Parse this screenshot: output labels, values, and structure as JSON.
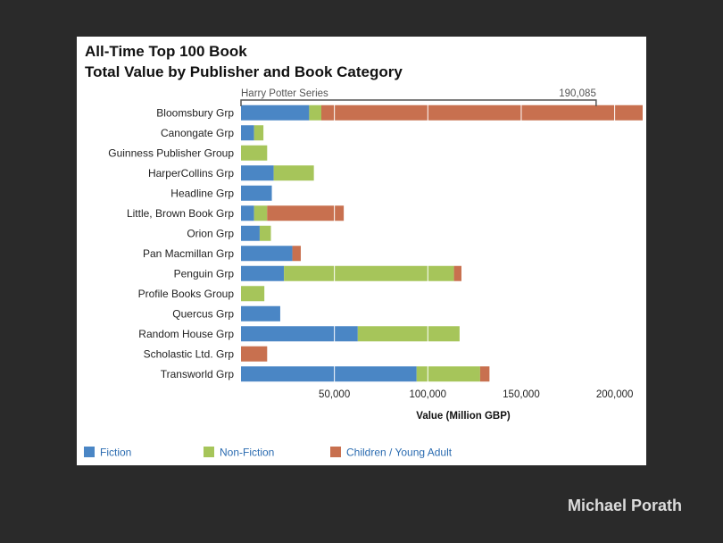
{
  "author": "Michael Porath",
  "colors": {
    "fiction": "#4a86c5",
    "nonfiction": "#a6c55a",
    "children": "#c8704f",
    "gridline": "#ffffff",
    "bracket": "#555555"
  },
  "chart_data": {
    "type": "bar",
    "orientation": "horizontal",
    "stacked": true,
    "title_lines": [
      "All-Time Top 100 Book",
      "Total Value by Publisher and Book Category"
    ],
    "xlabel": "Value (Million GBP)",
    "ylabel": "",
    "xlim": [
      0,
      215000
    ],
    "xticks": [
      50000,
      100000,
      150000,
      200000
    ],
    "xtick_labels": [
      "50,000",
      "100,000",
      "150,000",
      "200,000"
    ],
    "grid": "vertical",
    "legend_position": "bottom",
    "categories": [
      "Bloomsbury Grp",
      "Canongate Grp",
      "Guinness Publisher Group",
      "HarperCollins Grp",
      "Headline Grp",
      "Little, Brown Book Grp",
      "Orion Grp",
      "Pan Macmillan Grp",
      "Penguin Grp",
      "Profile Books Group",
      "Quercus Grp",
      "Random House Grp",
      "Scholastic Ltd. Grp",
      "Transworld Grp"
    ],
    "series": [
      {
        "name": "Fiction",
        "key": "fiction",
        "values": [
          36500,
          7000,
          0,
          17500,
          16500,
          7000,
          10000,
          27500,
          23000,
          0,
          21000,
          62500,
          0,
          94000
        ]
      },
      {
        "name": "Non-Fiction",
        "key": "nonfiction",
        "values": [
          6500,
          5000,
          14000,
          21500,
          0,
          7000,
          6000,
          0,
          91000,
          12500,
          0,
          54500,
          0,
          34000
        ]
      },
      {
        "name": "Children / Young Adult",
        "key": "children",
        "values": [
          172000,
          0,
          0,
          0,
          0,
          41000,
          0,
          4500,
          4000,
          0,
          0,
          0,
          14000,
          5000
        ]
      }
    ],
    "annotation": {
      "label": "Harry Potter Series",
      "value_label": "190,085",
      "start": 0,
      "end": 190085
    }
  }
}
